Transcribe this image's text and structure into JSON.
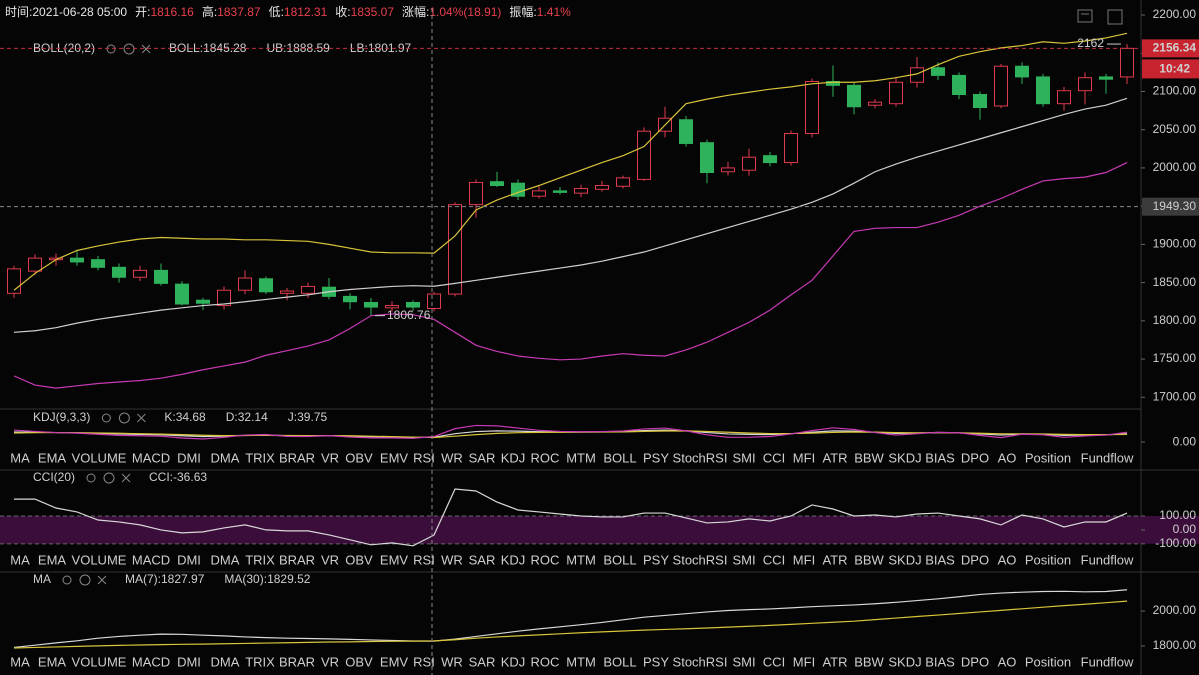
{
  "header": {
    "items": [
      {
        "label": "时间:",
        "value": "2021-06-28 05:00"
      },
      {
        "label": "开:",
        "value": 1816.16
      },
      {
        "label": "高:",
        "value": 1837.87
      },
      {
        "label": "低:",
        "value": 1812.31
      },
      {
        "label": "收:",
        "value": 1835.07
      },
      {
        "label": "涨幅:",
        "value": "1.04%(18.91)"
      },
      {
        "label": "振幅:",
        "value": "1.41%"
      }
    ]
  },
  "indicator_tabs": [
    "MA",
    "EMA",
    "VOLUME",
    "MACD",
    "DMI",
    "DMA",
    "TRIX",
    "BRAR",
    "VR",
    "OBV",
    "EMV",
    "RSI",
    "WR",
    "SAR",
    "KDJ",
    "ROC",
    "MTM",
    "BOLL",
    "PSY",
    "StochRSI",
    "SMI",
    "CCI",
    "MFI",
    "ATR",
    "BBW",
    "SKDJ",
    "BIAS",
    "DPO",
    "AO",
    "Position",
    "Fundflow"
  ],
  "tab_bars": [
    {
      "active": "KDJ",
      "dimmed": [
        "MA",
        "CCI"
      ]
    },
    {
      "active": "CCI",
      "dimmed": [
        "MA",
        "KDJ"
      ]
    },
    {
      "active": "MA",
      "dimmed": [
        "KDJ",
        "CCI"
      ]
    }
  ],
  "chart_data": [
    {
      "type": "candlestick",
      "indicator": "BOLL(20,2)",
      "up_color": "#e03a4e",
      "down_color": "#2eb25c",
      "ylim": [
        1686,
        2200
      ],
      "yticks": [
        {
          "value": 1700,
          "label": "1700.00"
        },
        {
          "value": 1750,
          "label": "1750.00"
        },
        {
          "value": 1800,
          "label": "1800.00"
        },
        {
          "value": 1850,
          "label": "1850.00"
        },
        {
          "value": 1900,
          "label": "1900.00"
        },
        {
          "value": 1950,
          "label": "1950.00"
        },
        {
          "value": 2000,
          "label": "2000.00"
        },
        {
          "value": 2050,
          "label": "2050.00"
        },
        {
          "value": 2100,
          "label": "2100.00"
        },
        {
          "value": 2150,
          "label": "2150.00"
        },
        {
          "value": 2200,
          "label": "2200.00"
        }
      ],
      "open": [
        1836,
        1865,
        1880,
        1882,
        1880,
        1870,
        1857,
        1866,
        1848,
        1827,
        1820,
        1840,
        1855,
        1836,
        1836,
        1844,
        1832,
        1824,
        1817,
        1824,
        1816.16,
        1835,
        1952,
        1982,
        1980,
        1963,
        1970,
        1967,
        1972,
        1976,
        1985,
        2048,
        2063,
        2033,
        1995,
        1997,
        2016,
        2007,
        2045,
        2113,
        2108,
        2082,
        2084,
        2112,
        2131,
        2121,
        2096,
        2081,
        2133,
        2119,
        2084,
        2101,
        2119,
        2119
      ],
      "high": [
        1872,
        1887,
        1888,
        1893,
        1885,
        1875,
        1872,
        1875,
        1852,
        1830,
        1845,
        1866,
        1858,
        1843,
        1850,
        1856,
        1836,
        1830,
        1826,
        1827,
        1837.87,
        1955,
        1985,
        1995,
        1985,
        1976,
        1975,
        1978,
        1983,
        1990,
        2053,
        2080,
        2068,
        2037,
        2008,
        2025,
        2021,
        2049,
        2117,
        2134,
        2112,
        2090,
        2119,
        2145,
        2138,
        2125,
        2100,
        2136,
        2138,
        2123,
        2106,
        2125,
        2123,
        2162
      ],
      "low": [
        1830,
        1860,
        1872,
        1872,
        1866,
        1850,
        1852,
        1846,
        1820,
        1814,
        1815,
        1835,
        1835,
        1827,
        1830,
        1828,
        1815,
        1807,
        1812,
        1813,
        1812.31,
        1832,
        1935,
        1975,
        1958,
        1960,
        1965,
        1962,
        1969,
        1973,
        1983,
        2040,
        2028,
        1980,
        1990,
        1990,
        2002,
        2003,
        2040,
        2093,
        2070,
        2078,
        2080,
        2105,
        2115,
        2090,
        2063,
        2078,
        2110,
        2080,
        2075,
        2083,
        2097,
        2110
      ],
      "close": [
        1868,
        1882,
        1882,
        1877,
        1870,
        1857,
        1866,
        1849,
        1822,
        1823,
        1840,
        1856,
        1838,
        1839,
        1845,
        1832,
        1825,
        1818,
        1820,
        1818,
        1835.07,
        1952,
        1981,
        1977,
        1963,
        1970,
        1968,
        1973,
        1977,
        1987,
        2048,
        2065,
        2032,
        1994,
        2000,
        2014,
        2007,
        2045,
        2113,
        2108,
        2080,
        2086,
        2112,
        2131,
        2121,
        2096,
        2079,
        2133,
        2119,
        2084,
        2101,
        2118,
        2116,
        2156.34
      ],
      "series": [
        {
          "name": "BOLL:1845.28",
          "color": "#d0d0d0",
          "values": [
            1785,
            1787,
            1791,
            1797,
            1802,
            1806,
            1810,
            1814,
            1817,
            1820,
            1822,
            1825,
            1828,
            1831,
            1834,
            1838,
            1841,
            1843,
            1845,
            1846,
            1845.28,
            1849,
            1853,
            1857,
            1861,
            1865,
            1869,
            1873,
            1878,
            1884,
            1890,
            1898,
            1906,
            1914,
            1922,
            1930,
            1938,
            1946,
            1955,
            1966,
            1980,
            1995,
            2005,
            2014,
            2022,
            2030,
            2038,
            2046,
            2054,
            2062,
            2070,
            2077,
            2082,
            2091
          ]
        },
        {
          "name": "UB:1888.59",
          "color": "#d9c43a",
          "values": [
            1840,
            1862,
            1880,
            1892,
            1898,
            1903,
            1907,
            1909,
            1908,
            1907,
            1907,
            1906,
            1906,
            1905,
            1904,
            1900,
            1895,
            1890,
            1889,
            1889,
            1888.59,
            1911,
            1945,
            1958,
            1968,
            1977,
            1987,
            1997,
            2007,
            2016,
            2028,
            2056,
            2084,
            2090,
            2095,
            2099,
            2103,
            2106,
            2110,
            2112,
            2112,
            2114,
            2118,
            2123,
            2135,
            2146,
            2152,
            2157,
            2160,
            2165,
            2163,
            2166,
            2170,
            2176
          ]
        },
        {
          "name": "LB:1801.97",
          "color": "#c93ab6",
          "values": [
            1728,
            1716,
            1712,
            1715,
            1718,
            1720,
            1722,
            1725,
            1730,
            1736,
            1741,
            1746,
            1755,
            1761,
            1767,
            1775,
            1790,
            1806.76,
            1809,
            1808,
            1801.97,
            1785,
            1768,
            1760,
            1754,
            1751,
            1749,
            1750,
            1754,
            1757,
            1755,
            1754,
            1762,
            1772,
            1785,
            1798,
            1814,
            1834,
            1853,
            1885,
            1917,
            1921,
            1922,
            1922,
            1929,
            1938,
            1950,
            1960,
            1972,
            1983,
            1986,
            1988,
            1994,
            2007
          ]
        }
      ],
      "last_price": {
        "value": 2156.34,
        "label": "2156.34"
      },
      "countdown": "10:42",
      "crosshair_price": {
        "value": 1949.3,
        "label": "1949.30"
      },
      "annotations": [
        {
          "value": 2162,
          "label": "2162"
        },
        {
          "value": 1806.76,
          "label": "1806.76"
        }
      ]
    },
    {
      "type": "line",
      "indicator": "KDJ(9,3,3)",
      "ylim": [
        -128,
        122
      ],
      "yticks": [
        {
          "value": 0,
          "label": "0.00"
        }
      ],
      "series": [
        {
          "name": "K:34.68",
          "color": "#d8d8d8",
          "values": [
            72,
            70,
            68,
            66,
            62,
            58,
            55,
            52,
            45,
            40,
            42,
            48,
            50,
            45,
            44,
            46,
            42,
            38,
            36,
            33,
            34.68,
            60,
            75,
            80,
            78,
            74,
            72,
            72,
            73,
            75,
            82,
            86,
            80,
            68,
            58,
            55,
            54,
            60,
            70,
            80,
            78,
            70,
            62,
            64,
            68,
            66,
            58,
            50,
            58,
            56,
            48,
            50,
            52,
            60
          ]
        },
        {
          "name": "D:32.14",
          "color": "#d9c43a",
          "values": [
            65,
            67,
            68,
            67,
            65,
            63,
            60,
            57,
            53,
            49,
            46,
            47,
            48,
            47,
            46,
            46,
            45,
            42,
            39,
            36,
            32.14,
            42,
            53,
            62,
            67,
            69,
            70,
            71,
            72,
            73,
            76,
            79,
            80,
            76,
            70,
            65,
            61,
            61,
            64,
            69,
            72,
            71,
            68,
            66,
            67,
            66,
            63,
            59,
            59,
            58,
            55,
            53,
            53,
            55
          ]
        },
        {
          "name": "J:39.75",
          "color": "#c93ab6",
          "values": [
            86,
            76,
            68,
            64,
            56,
            48,
            45,
            42,
            29,
            22,
            34,
            50,
            54,
            41,
            40,
            46,
            36,
            30,
            30,
            27,
            39.75,
            96,
            119,
            116,
            100,
            84,
            76,
            74,
            75,
            79,
            94,
            100,
            80,
            52,
            34,
            35,
            40,
            58,
            82,
            102,
            90,
            68,
            50,
            60,
            70,
            66,
            48,
            32,
            56,
            52,
            34,
            44,
            50,
            70
          ]
        }
      ]
    },
    {
      "type": "line",
      "indicator": "CCI(20)",
      "ylim": [
        -180,
        315
      ],
      "band_color": "#3a0d3a",
      "yticks": [
        {
          "value": -100,
          "label": "-100.00"
        },
        {
          "value": 0,
          "label": "0.00"
        },
        {
          "value": 100,
          "label": "100.00"
        }
      ],
      "series": [
        {
          "name": "CCI:-36.63",
          "color": "#d8d8d8",
          "values": [
            221,
            221,
            157,
            129,
            71,
            57,
            36,
            0,
            -21,
            -14,
            14,
            36,
            0,
            -7,
            -7,
            -36,
            -71,
            -107,
            -93,
            -114,
            -36.63,
            293,
            279,
            200,
            143,
            129,
            114,
            100,
            93,
            93,
            121,
            121,
            86,
            50,
            57,
            79,
            64,
            100,
            179,
            150,
            100,
            107,
            93,
            114,
            121,
            100,
            79,
            36,
            107,
            79,
            21,
            57,
            57,
            121
          ]
        }
      ]
    },
    {
      "type": "line",
      "indicator": "MA",
      "ylim": [
        1663,
        2149
      ],
      "yticks": [
        {
          "value": 1800,
          "label": "1800.00"
        },
        {
          "value": 2000,
          "label": "2000.00"
        }
      ],
      "series": [
        {
          "name": "MA(7):1827.97",
          "color": "#d8d8d8",
          "values": [
            1792,
            1805,
            1818,
            1830,
            1845,
            1855,
            1862,
            1868,
            1867,
            1862,
            1858,
            1852,
            1848,
            1845,
            1843,
            1841,
            1838,
            1835,
            1832,
            1829,
            1827.97,
            1840,
            1855,
            1870,
            1885,
            1898,
            1910,
            1922,
            1935,
            1950,
            1965,
            1975,
            1985,
            1995,
            2003,
            2008,
            2012,
            2018,
            2025,
            2030,
            2035,
            2042,
            2050,
            2060,
            2070,
            2082,
            2095,
            2103,
            2108,
            2112,
            2113,
            2110,
            2112,
            2122
          ]
        },
        {
          "name": "MA(30):1829.52",
          "color": "#d9c43a",
          "values": [
            1789,
            1792,
            1795,
            1798,
            1801,
            1804,
            1806,
            1808,
            1810,
            1811,
            1813,
            1815,
            1817,
            1819,
            1821,
            1823,
            1824,
            1826,
            1827,
            1828,
            1829.52,
            1836,
            1845,
            1852,
            1858,
            1864,
            1870,
            1876,
            1881,
            1886,
            1891,
            1895,
            1899,
            1903,
            1908,
            1913,
            1918,
            1924,
            1930,
            1936,
            1942,
            1951,
            1960,
            1969,
            1977,
            1986,
            1995,
            2004,
            2013,
            2022,
            2031,
            2039,
            2048,
            2057
          ]
        }
      ]
    }
  ]
}
